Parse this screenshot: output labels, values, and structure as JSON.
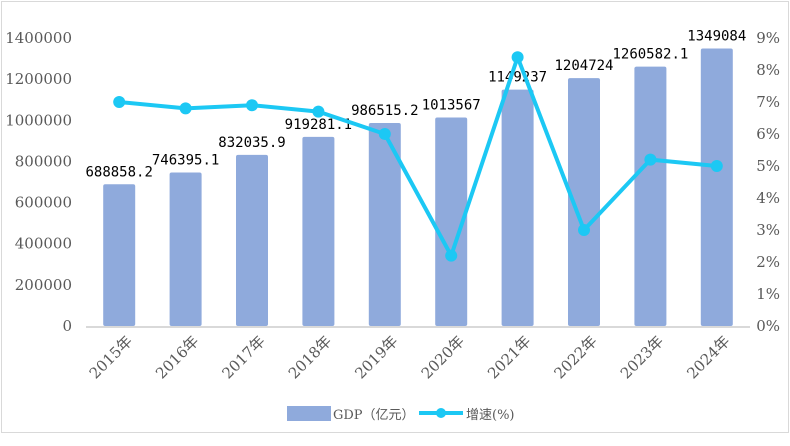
{
  "chart_data": {
    "type": "bar+line",
    "title": "",
    "categories": [
      "2015年",
      "2016年",
      "2017年",
      "2018年",
      "2019年",
      "2020年",
      "2021年",
      "2022年",
      "2023年",
      "2024年"
    ],
    "series": [
      {
        "name": "GDP（亿元）",
        "type": "bar",
        "axis": "left",
        "color": "#8FAADC",
        "values": [
          688858.2,
          746395.1,
          832035.9,
          919281.1,
          986515.2,
          1013567,
          1149237,
          1204724,
          1260582.1,
          1349084
        ],
        "labels": [
          "688858.2",
          "746395.1",
          "832035.9",
          "919281.1",
          "986515.2",
          "1013567",
          "1149237",
          "1204724",
          "1260582.1",
          "1349084"
        ]
      },
      {
        "name": "增速(%)",
        "type": "line",
        "axis": "right",
        "color": "#1CC8F4",
        "values": [
          7.0,
          6.8,
          6.9,
          6.7,
          6.0,
          2.2,
          8.4,
          3.0,
          5.2,
          5.0
        ]
      }
    ],
    "left_axis": {
      "ylim": [
        0,
        1400000
      ],
      "ticks": [
        "0",
        "200000",
        "400000",
        "600000",
        "800000",
        "1000000",
        "1200000",
        "1400000"
      ]
    },
    "right_axis": {
      "ylim": [
        0,
        9
      ],
      "ticks": [
        "0%",
        "1%",
        "2%",
        "3%",
        "4%",
        "5%",
        "6%",
        "7%",
        "8%",
        "9%"
      ]
    },
    "xlabel": "",
    "ylabel": "",
    "grid": false,
    "legend_position": "bottom",
    "legend": [
      "GDP（亿元）",
      "增速(%)"
    ]
  }
}
